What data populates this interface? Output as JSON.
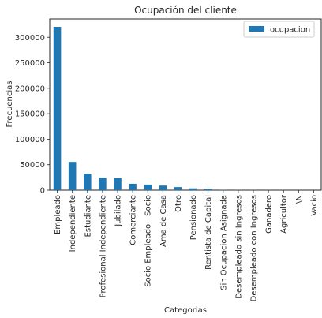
{
  "chart_data": {
    "type": "bar",
    "title": "Ocupación del cliente",
    "xlabel": "Categorias",
    "ylabel": "Frecuencias",
    "categories": [
      "Empleado",
      "Independiente",
      "Estudiante",
      "Profesional Independiente",
      "Jubilado",
      "Comerciante",
      "Socio Empleado - Socio",
      "Ama de Casa",
      "Otro",
      "Pensionado",
      "Rentista de Capital",
      "Sin Ocupacion Asignada",
      "Desempleado sin Ingresos",
      "Desempleado con Ingresos",
      "Ganadero",
      "Agricultor",
      "\\N",
      "Vacio"
    ],
    "series": [
      {
        "name": "ocupacion",
        "values": [
          320500,
          55500,
          32500,
          24500,
          23500,
          12500,
          11000,
          9000,
          6000,
          3500,
          3000,
          300,
          200,
          150,
          100,
          80,
          20,
          10
        ]
      }
    ],
    "ylim": [
      0,
      336000
    ],
    "yticks": [
      0,
      50000,
      100000,
      150000,
      200000,
      250000,
      300000
    ],
    "ytick_labels": [
      "0",
      "50000",
      "100000",
      "150000",
      "200000",
      "250000",
      "300000"
    ],
    "grid": false,
    "legend_position": "top-right",
    "colors": {
      "bar": "#1f77b4",
      "axes": "#262626",
      "background": "#ffffff"
    }
  }
}
